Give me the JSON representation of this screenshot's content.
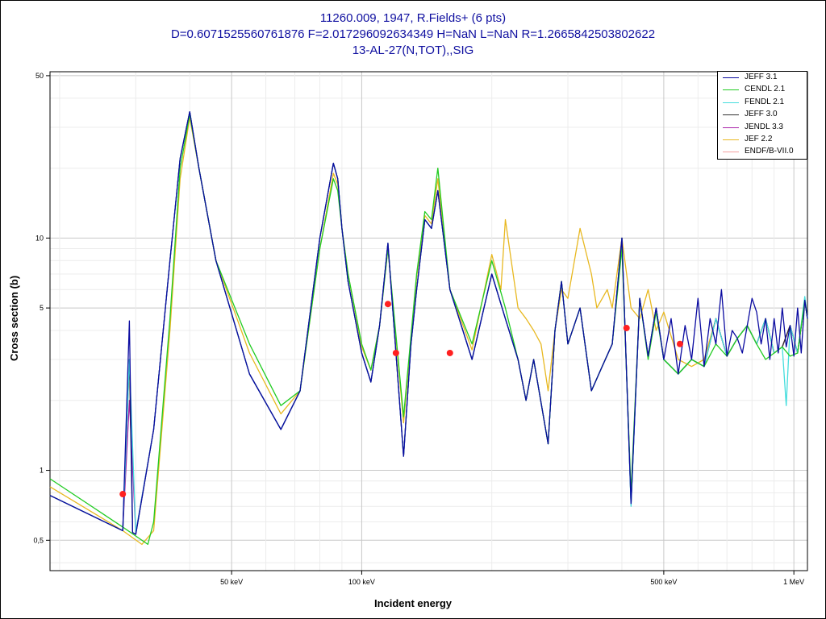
{
  "title_lines": [
    "11260.009, 1947, R.Fields+ (6 pts)",
    "D=0.6071525560761876 F=2.017296092634349 H=NaN L=NaN R=1.2665842503802622",
    "13-AL-27(N,TOT),,SIG"
  ],
  "chart_data": {
    "type": "line",
    "xlabel": "Incident energy",
    "ylabel": "Cross section (b)",
    "x_unit": "keV",
    "xscale": "log",
    "yscale": "log",
    "xlim": [
      19,
      1075
    ],
    "ylim": [
      0.37,
      52
    ],
    "x_ticks": [
      {
        "value": 50,
        "label": "50 keV"
      },
      {
        "value": 100,
        "label": "100 keV"
      },
      {
        "value": 500,
        "label": "500 keV"
      },
      {
        "value": 1000,
        "label": "1 MeV"
      }
    ],
    "y_ticks": [
      {
        "value": 0.5,
        "label": "0,5"
      },
      {
        "value": 1,
        "label": "1"
      },
      {
        "value": 5,
        "label": "5"
      },
      {
        "value": 10,
        "label": "10"
      },
      {
        "value": 50,
        "label": "50"
      }
    ],
    "grid": true,
    "legend_position": "top-right",
    "series": [
      {
        "name": "JEFF 3.1",
        "color": "#0a0aa0",
        "x": [
          19,
          28,
          29,
          29.5,
          30,
          33,
          36,
          38,
          40,
          42,
          46,
          55,
          65,
          72,
          80,
          86,
          88,
          90,
          93,
          100,
          105,
          110,
          115,
          125,
          130,
          134,
          140,
          145,
          150,
          160,
          180,
          200,
          215,
          230,
          240,
          250,
          270,
          280,
          290,
          300,
          320,
          340,
          360,
          380,
          400,
          420,
          440,
          460,
          480,
          500,
          520,
          540,
          560,
          580,
          600,
          620,
          640,
          660,
          680,
          700,
          720,
          740,
          760,
          780,
          800,
          820,
          840,
          860,
          880,
          900,
          920,
          940,
          960,
          980,
          1000,
          1020,
          1040,
          1060,
          1075
        ],
        "y": [
          0.78,
          0.55,
          4.4,
          0.54,
          0.53,
          1.5,
          8,
          22,
          35,
          20,
          8,
          2.6,
          1.5,
          2.2,
          10,
          21,
          18,
          11,
          6.5,
          3.2,
          2.4,
          4.2,
          9.5,
          1.15,
          3.5,
          6,
          12,
          11,
          16,
          6,
          3,
          7,
          4.5,
          3,
          2,
          3,
          1.3,
          4,
          6.5,
          3.5,
          5,
          2.2,
          2.8,
          3.5,
          10,
          0.72,
          5.5,
          3.1,
          5,
          3,
          4.5,
          2.6,
          4.2,
          3,
          5.5,
          2.8,
          4.5,
          3.5,
          6,
          3.1,
          4,
          3.7,
          3.2,
          4.2,
          5.5,
          4.8,
          3.5,
          4.5,
          3,
          4.5,
          3.2,
          5,
          3.4,
          4.2,
          3.1,
          5,
          3.2,
          5.4,
          4.5
        ]
      },
      {
        "name": "CENDL 2.1",
        "color": "#22cc22",
        "x": [
          19,
          28,
          32,
          33,
          36,
          38,
          40,
          42,
          46,
          55,
          65,
          72,
          80,
          86,
          88,
          90,
          93,
          100,
          105,
          110,
          115,
          125,
          130,
          134,
          140,
          145,
          150,
          160,
          180,
          200,
          215,
          230,
          240,
          250,
          270,
          280,
          290,
          300,
          320,
          340,
          360,
          380,
          400,
          420,
          440,
          460,
          480,
          500,
          540,
          580,
          620,
          660,
          700,
          740,
          780,
          820,
          860,
          900,
          940,
          980,
          1020,
          1060,
          1075
        ],
        "y": [
          0.92,
          0.57,
          0.48,
          0.6,
          4.5,
          20,
          34,
          20,
          8,
          3.5,
          1.9,
          2.2,
          9,
          18,
          16,
          11,
          7,
          3.5,
          2.7,
          4.2,
          9,
          1.7,
          3.8,
          7,
          13,
          12,
          20,
          6,
          3.5,
          8,
          5,
          3,
          2,
          3,
          1.3,
          4,
          6.5,
          3.5,
          5,
          2.2,
          2.8,
          3.5,
          9,
          0.8,
          5.5,
          3,
          4.8,
          3,
          2.6,
          3,
          2.8,
          3.5,
          3.1,
          3.7,
          4.2,
          3.5,
          3,
          3.2,
          3.4,
          3.1,
          3.2,
          5.4,
          4.5
        ]
      },
      {
        "name": "FENDL 2.1",
        "color": "#44dddd",
        "x": [
          19,
          28,
          29,
          30,
          33,
          36,
          38,
          40,
          42,
          46,
          55,
          65,
          72,
          80,
          86,
          88,
          90,
          93,
          100,
          105,
          110,
          115,
          125,
          130,
          134,
          140,
          145,
          150,
          160,
          180,
          200,
          215,
          230,
          240,
          250,
          270,
          280,
          290,
          300,
          320,
          340,
          360,
          380,
          400,
          420,
          440,
          460,
          480,
          500,
          540,
          580,
          620,
          660,
          700,
          740,
          780,
          820,
          860,
          900,
          940,
          960,
          980,
          1020,
          1060,
          1075
        ],
        "y": [
          0.78,
          0.55,
          3,
          0.54,
          1.5,
          8,
          22,
          35,
          20,
          8,
          2.6,
          1.5,
          2.2,
          10,
          21,
          18,
          11,
          6.5,
          3.2,
          2.4,
          4.2,
          9.5,
          1.15,
          3.5,
          6,
          12,
          11,
          16,
          6,
          3,
          7,
          4.5,
          3,
          2,
          3,
          1.3,
          4,
          6.5,
          3.5,
          5,
          2.2,
          2.8,
          3.5,
          10,
          0.7,
          5.5,
          3.1,
          5,
          3,
          2.6,
          3,
          2.8,
          4.5,
          3.1,
          3.7,
          4.2,
          3.5,
          4.5,
          3.2,
          3.4,
          1.9,
          4.2,
          3.2,
          5.6,
          4.5
        ]
      },
      {
        "name": "JEFF 3.0",
        "color": "#303030",
        "x": [
          19,
          28,
          29,
          29.5,
          30,
          33,
          36,
          38,
          40,
          42,
          46,
          55,
          65,
          72,
          80,
          86,
          88,
          90,
          93,
          100,
          105,
          110,
          115,
          125,
          130,
          134,
          140,
          145,
          150,
          160,
          180,
          200,
          215,
          230,
          240,
          250,
          270,
          280,
          290,
          300,
          320,
          340,
          360,
          380,
          400,
          420,
          440,
          460,
          480,
          500,
          540,
          580,
          620,
          660,
          700,
          740,
          780,
          820,
          860,
          900,
          940,
          980,
          1020,
          1060,
          1075
        ],
        "y": [
          0.78,
          0.55,
          3,
          0.54,
          0.53,
          1.5,
          8,
          22,
          35,
          20,
          8,
          2.6,
          1.5,
          2.2,
          10,
          21,
          18,
          11,
          6.5,
          3.2,
          2.4,
          4.2,
          9.5,
          1.15,
          3.5,
          6,
          12,
          11,
          16,
          6,
          3,
          7,
          4.5,
          3,
          2,
          3,
          1.3,
          4,
          6.5,
          3.5,
          5,
          2.2,
          2.8,
          3.5,
          10,
          0.72,
          5.5,
          3.1,
          5,
          3,
          2.6,
          3,
          2.8,
          4.5,
          3.1,
          3.7,
          4.2,
          3.5,
          4.5,
          3.2,
          3.4,
          4.2,
          3.2,
          5.4,
          4.5
        ]
      },
      {
        "name": "JENDL 3.3",
        "color": "#aa22aa",
        "x": [
          19,
          28,
          29,
          30,
          33,
          36,
          38,
          40,
          42,
          46,
          55,
          65,
          72,
          80,
          86,
          88,
          90,
          93,
          100,
          105,
          110,
          115,
          125,
          130,
          134,
          140,
          145,
          150,
          160,
          180,
          200,
          215,
          230,
          240,
          250,
          270,
          280,
          290,
          300,
          320,
          340,
          360,
          380,
          400,
          420,
          440,
          460,
          480,
          500,
          540,
          580,
          620,
          660,
          700,
          740,
          780,
          820,
          860,
          900,
          940,
          980,
          1020,
          1060,
          1075
        ],
        "y": [
          0.78,
          0.55,
          2,
          0.54,
          1.5,
          8,
          22,
          35,
          20,
          8,
          2.6,
          1.5,
          2.2,
          10,
          21,
          18,
          11,
          6.5,
          3.2,
          2.4,
          4.2,
          9.5,
          1.15,
          3.5,
          6,
          12,
          11,
          16,
          6,
          3,
          7,
          4.5,
          3,
          2,
          3,
          1.3,
          4,
          6.5,
          3.5,
          5,
          2.2,
          2.8,
          3.5,
          10,
          0.72,
          5.5,
          3.1,
          5,
          3,
          2.6,
          3,
          2.8,
          4.5,
          3.1,
          3.7,
          4.2,
          3.5,
          4.5,
          3.2,
          3.4,
          4.2,
          3.2,
          5.4,
          4.5
        ]
      },
      {
        "name": "JEF 2.2",
        "color": "#e8b820",
        "x": [
          19,
          28,
          31,
          33,
          36,
          38,
          40,
          42,
          46,
          55,
          65,
          72,
          80,
          86,
          88,
          90,
          93,
          100,
          105,
          110,
          115,
          125,
          130,
          134,
          140,
          145,
          150,
          160,
          180,
          200,
          210,
          215,
          230,
          240,
          250,
          260,
          270,
          280,
          290,
          300,
          320,
          340,
          350,
          370,
          380,
          400,
          420,
          440,
          460,
          480,
          500,
          540,
          580,
          620,
          660,
          700,
          740,
          780,
          820,
          860,
          900,
          940,
          980,
          1020,
          1060,
          1075
        ],
        "y": [
          0.85,
          0.55,
          0.48,
          0.55,
          4,
          18,
          33,
          20,
          8,
          3.2,
          1.75,
          2.2,
          9,
          19,
          17,
          11,
          7,
          3.4,
          2.7,
          4.2,
          9,
          1.6,
          3.7,
          6.8,
          12.5,
          11.5,
          18,
          6,
          3.3,
          8.5,
          6,
          12,
          5,
          4.5,
          4,
          3.5,
          2.2,
          4,
          6,
          5.5,
          11,
          7,
          5,
          6,
          5,
          10,
          5,
          4.5,
          6,
          4,
          4.8,
          3,
          2.8,
          3,
          4.5,
          3.1,
          3.7,
          4.2,
          3.5,
          4.5,
          3.2,
          3.4,
          4.2,
          3.2,
          5.4,
          4.5
        ]
      }
    ],
    "points": {
      "color": "#ff2020",
      "x": [
        28,
        115,
        120,
        160,
        410,
        545
      ],
      "y": [
        0.79,
        5.2,
        3.2,
        3.2,
        4.1,
        3.5
      ]
    }
  }
}
